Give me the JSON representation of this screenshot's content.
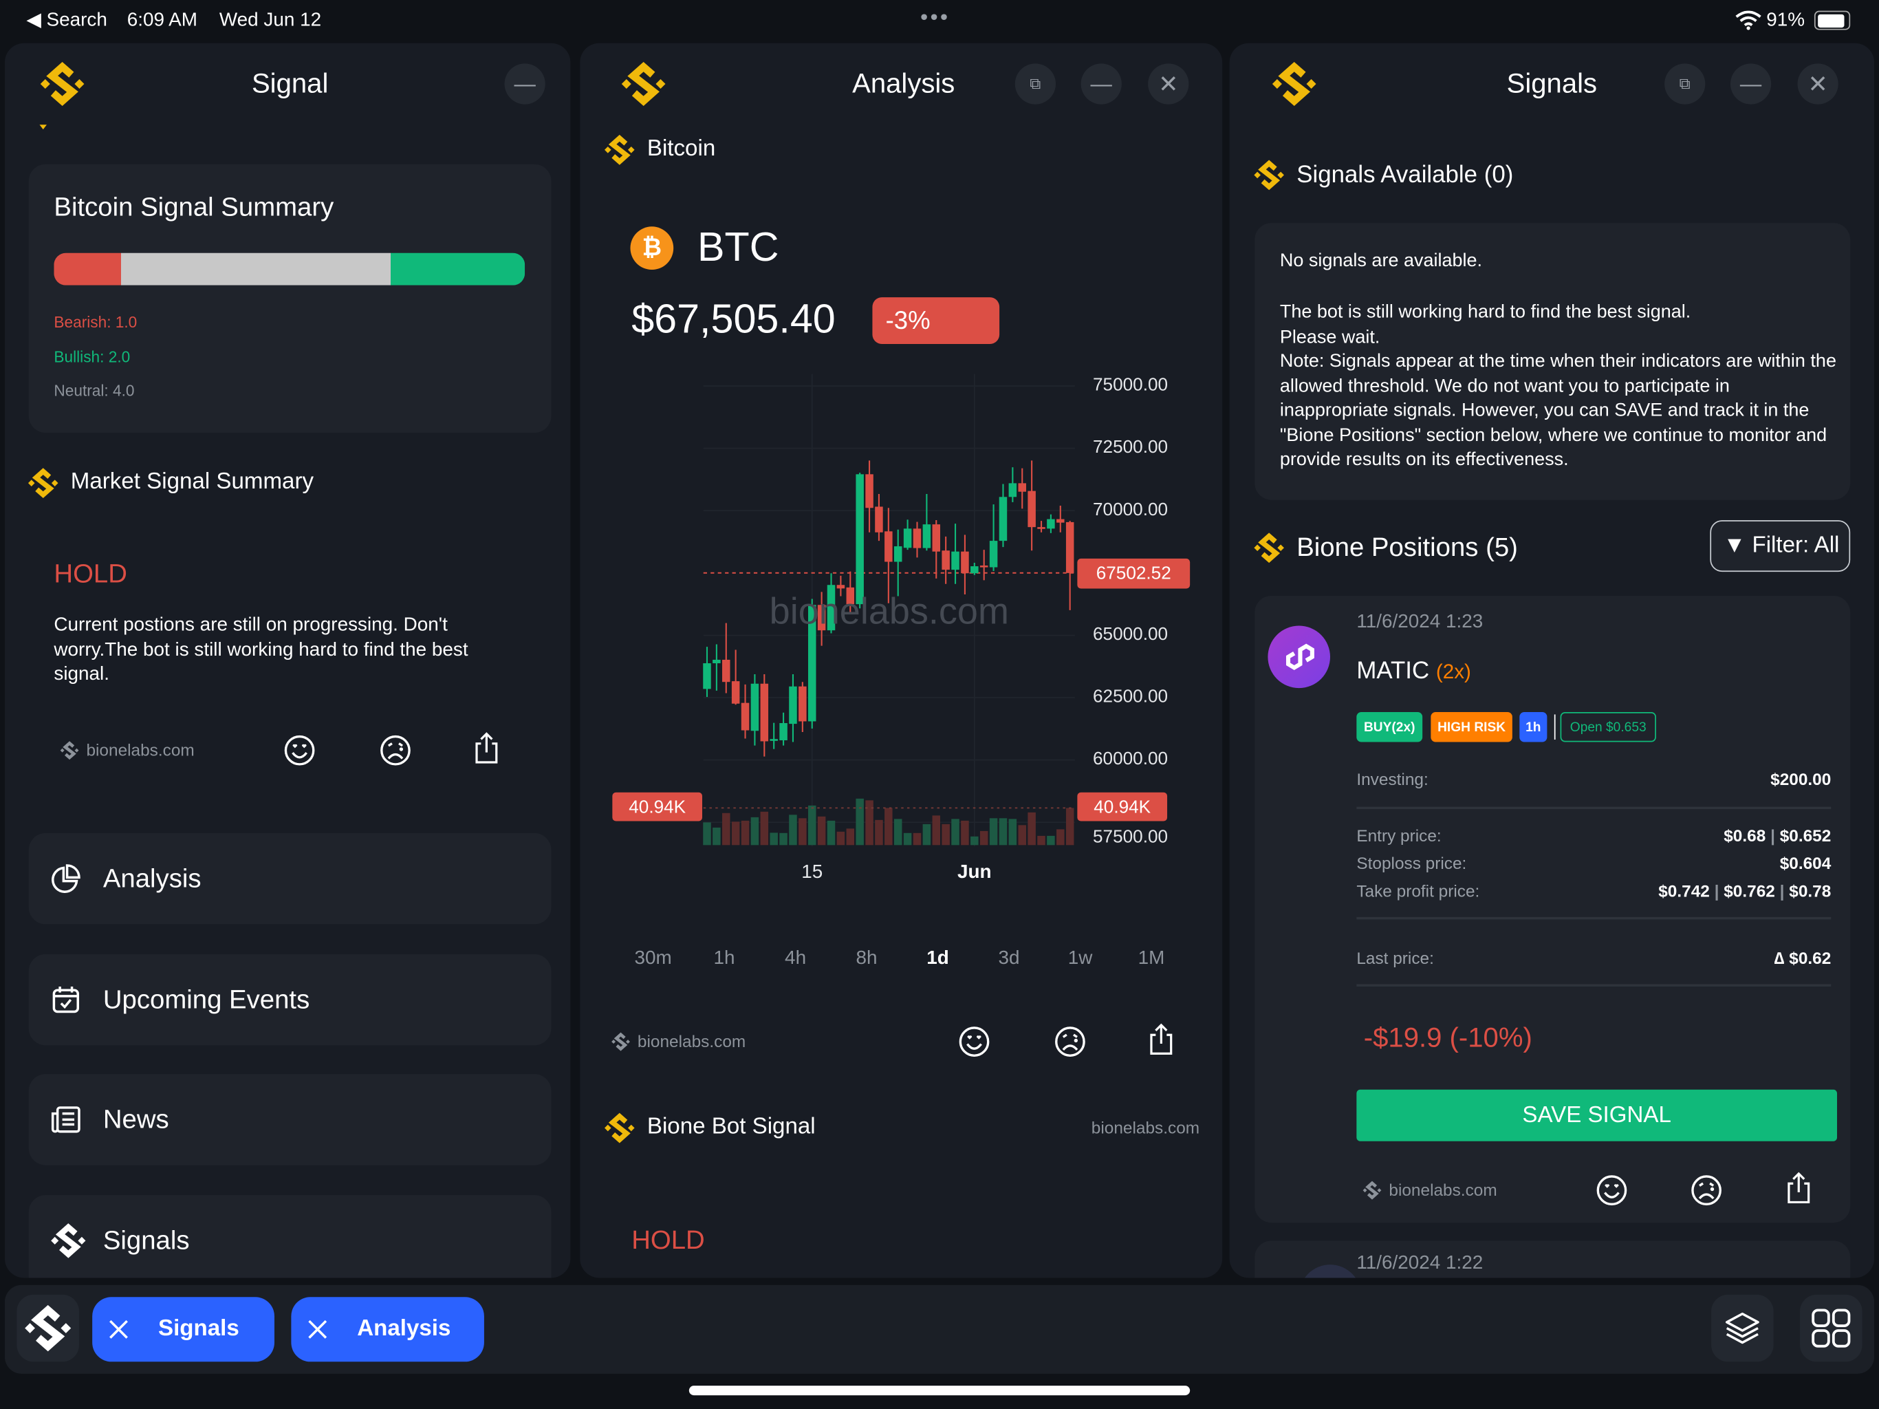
{
  "status_bar": {
    "back_label": "Search",
    "time": "6:09 AM",
    "date": "Wed Jun 12",
    "battery": "91%",
    "battery_level": 0.91
  },
  "colors": {
    "brand": "#f0b90b",
    "bearish": "#dc4f45",
    "bullish": "#10b97a",
    "neutral": "#c8c8c8",
    "accent": "#2b62ff",
    "warning": "#ff7f00"
  },
  "left": {
    "title": "Signal",
    "summary": {
      "title": "Bitcoin Signal Summary",
      "bearish_label": "Bearish: 1.0",
      "bullish_label": "Bullish: 2.0",
      "neutral_label": "Neutral: 4.0",
      "bearish": 1.0,
      "bullish": 2.0,
      "neutral": 4.0
    },
    "market": {
      "title": "Market Signal Summary",
      "signal": "HOLD",
      "text": "Current postions are still on progressing. Don't worry.The bot is still working hard to find the best signal.",
      "brand": "bionelabs.com"
    },
    "menu": [
      {
        "label": "Analysis",
        "icon": "pie-chart-icon"
      },
      {
        "label": "Upcoming Events",
        "icon": "calendar-check-icon"
      },
      {
        "label": "News",
        "icon": "newspaper-icon"
      },
      {
        "label": "Signals",
        "icon": "logo-icon"
      }
    ]
  },
  "middle": {
    "title": "Analysis",
    "coin_name": "Bitcoin",
    "symbol": "BTC",
    "price": "$67,505.40",
    "change": "-3%",
    "timeframes": [
      "30m",
      "1h",
      "4h",
      "8h",
      "1d",
      "3d",
      "1w",
      "1M"
    ],
    "selected_timeframe": "1d",
    "brand": "bionelabs.com",
    "bot_signal_title": "Bione Bot Signal",
    "bot_signal_brand": "bionelabs.com",
    "bot_signal": "HOLD"
  },
  "chart_data": {
    "type": "candlestick",
    "watermark": "bionelabs.com",
    "y_tick_labels": [
      "75000.00",
      "72500.00",
      "70000.00",
      "65000.00",
      "62500.00",
      "60000.00",
      "57500.00"
    ],
    "y_ticks": [
      75000,
      72500,
      70000,
      65000,
      62500,
      60000,
      57500
    ],
    "ylim": [
      57500,
      75000
    ],
    "x_tick_labels": [
      "15",
      "Jun"
    ],
    "x_tick_index": [
      11,
      28
    ],
    "last_price_label": "67502.52",
    "last_price": 67502.52,
    "volume_label": "40.94K",
    "volume_marker": 40.94,
    "grid": true,
    "candles_ohlc": [
      [
        62850,
        64540,
        62530,
        63880
      ],
      [
        63880,
        64640,
        62780,
        64020
      ],
      [
        64020,
        65490,
        62680,
        63130
      ],
      [
        63160,
        64420,
        62220,
        62260
      ],
      [
        62290,
        63030,
        60860,
        61190
      ],
      [
        61170,
        63440,
        60580,
        63060
      ],
      [
        63060,
        63440,
        60140,
        60750
      ],
      [
        60780,
        61490,
        60440,
        60840
      ],
      [
        60790,
        61900,
        60580,
        61480
      ],
      [
        61450,
        63440,
        60720,
        62950
      ],
      [
        62950,
        63130,
        61120,
        61550
      ],
      [
        61550,
        66460,
        61260,
        66220
      ],
      [
        66220,
        66740,
        64580,
        65200
      ],
      [
        65200,
        67490,
        65080,
        67020
      ],
      [
        67020,
        67390,
        66570,
        66880
      ],
      [
        66920,
        67560,
        65840,
        66250
      ],
      [
        66250,
        71520,
        66080,
        71460
      ],
      [
        71460,
        72010,
        69130,
        70110
      ],
      [
        70160,
        70670,
        68790,
        69130
      ],
      [
        69170,
        70110,
        66290,
        67950
      ],
      [
        67950,
        69240,
        66570,
        68570
      ],
      [
        68510,
        69640,
        68430,
        69280
      ],
      [
        69280,
        69550,
        68120,
        68500
      ],
      [
        68500,
        70670,
        68400,
        69450
      ],
      [
        69450,
        69620,
        67280,
        68360
      ],
      [
        68400,
        68960,
        67060,
        67630
      ],
      [
        67630,
        69480,
        67060,
        68360
      ],
      [
        68360,
        69030,
        66640,
        67490
      ],
      [
        67490,
        67910,
        67420,
        67770
      ],
      [
        67800,
        68430,
        67210,
        67730
      ],
      [
        67730,
        70250,
        67580,
        68790
      ],
      [
        68790,
        71070,
        68540,
        70550
      ],
      [
        70550,
        71740,
        70340,
        71100
      ],
      [
        71100,
        71700,
        70080,
        70760
      ],
      [
        70790,
        72010,
        68400,
        69340
      ],
      [
        69340,
        69590,
        69130,
        69310
      ],
      [
        69280,
        69850,
        69100,
        69660
      ],
      [
        69660,
        70200,
        69130,
        69520
      ],
      [
        69540,
        69590,
        66010,
        67500
      ]
    ],
    "volumes_k": [
      25.0,
      19.3,
      35.3,
      25.8,
      26.9,
      30.7,
      36.8,
      13.6,
      13.3,
      33.4,
      29.6,
      43.6,
      31.5,
      26.9,
      14.8,
      18.2,
      51.2,
      49.3,
      27.7,
      40.9,
      28.8,
      13.3,
      13.3,
      23.1,
      32.6,
      23.1,
      28.8,
      26.9,
      9.5,
      15.5,
      29.6,
      29.6,
      28.8,
      22.0,
      36.0,
      10.2,
      10.2,
      17.4,
      40.9
    ]
  },
  "right": {
    "title": "Signals",
    "available_title": "Signals Available (0)",
    "no_signals": "No signals are available.",
    "message": "The bot is still working hard to find the best signal.\nPlease wait.\nNote: Signals appear at the time when their indicators are within the allowed threshold. We do not want you to participate in inappropriate signals. However, you can SAVE and track it in the \"Bione Positions\" section below, where we continue to monitor and provide results on its effectiveness.",
    "positions_title": "Bione Positions (5)",
    "filter_label": "Filter: All",
    "positions": [
      {
        "date": "11/6/2024 1:23",
        "coin": "MATIC",
        "leverage": "(2x)",
        "badges": {
          "side": "BUY(2x)",
          "risk": "HIGH RISK",
          "timeframe": "1h",
          "status": "Open $0.653"
        },
        "investing_label": "Investing:",
        "investing": "$200.00",
        "entry_label": "Entry price:",
        "entry": [
          "$0.68",
          "$0.652"
        ],
        "stoploss_label": "Stoploss price:",
        "stoploss": "$0.604",
        "takeprofit_label": "Take profit price:",
        "takeprofit": [
          "$0.742",
          "$0.762",
          "$0.78"
        ],
        "last_label": "Last price:",
        "last": "∆ $0.62",
        "pnl": "-$19.9 (-10%)",
        "save_label": "SAVE SIGNAL",
        "brand": "bionelabs.com"
      },
      {
        "date": "11/6/2024 1:22"
      }
    ]
  },
  "dock": {
    "tabs": [
      {
        "label": "Signals"
      },
      {
        "label": "Analysis"
      }
    ]
  }
}
